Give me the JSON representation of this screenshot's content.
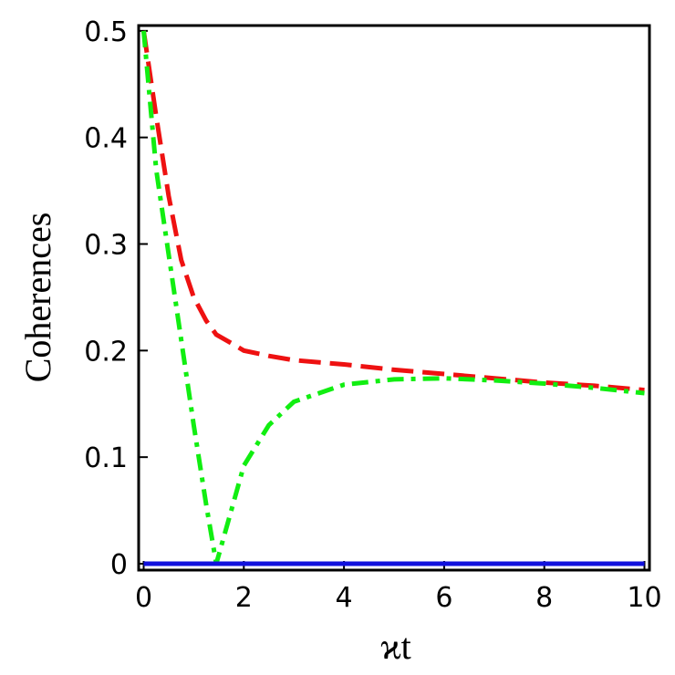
{
  "chart_data": {
    "type": "line",
    "x_label": "ϰt",
    "y_label": "Coherences",
    "x": [
      0,
      0.25,
      0.5,
      0.75,
      1,
      1.25,
      1.45,
      1.75,
      2,
      2.5,
      3,
      4,
      5,
      6,
      7,
      8,
      9,
      10
    ],
    "series": [
      {
        "color": "#ee1111",
        "linestyle": "dashed",
        "values": [
          0.5,
          0.42,
          0.345,
          0.285,
          0.25,
          0.228,
          0.215,
          0.207,
          0.2,
          0.195,
          0.191,
          0.187,
          0.182,
          0.178,
          0.174,
          0.17,
          0.167,
          0.163
        ]
      },
      {
        "color": "#11ee11",
        "linestyle": "dashdot",
        "values": [
          0.5,
          0.37,
          0.29,
          0.21,
          0.13,
          0.055,
          0,
          0.05,
          0.092,
          0.13,
          0.152,
          0.168,
          0.173,
          0.174,
          0.172,
          0.169,
          0.165,
          0.16
        ]
      },
      {
        "color": "#1111dd",
        "linestyle": "solid",
        "values": [
          0,
          0,
          0,
          0,
          0,
          0,
          0,
          0,
          0,
          0,
          0,
          0,
          0,
          0,
          0,
          0,
          0,
          0
        ]
      }
    ],
    "xlim": [
      -0.1,
      10.1
    ],
    "ylim": [
      -0.006,
      0.505
    ],
    "xticks": [
      0,
      2,
      4,
      6,
      8,
      10
    ],
    "yticks": [
      0,
      0.1,
      0.2,
      0.3,
      0.4,
      0.5
    ],
    "grid": false
  }
}
